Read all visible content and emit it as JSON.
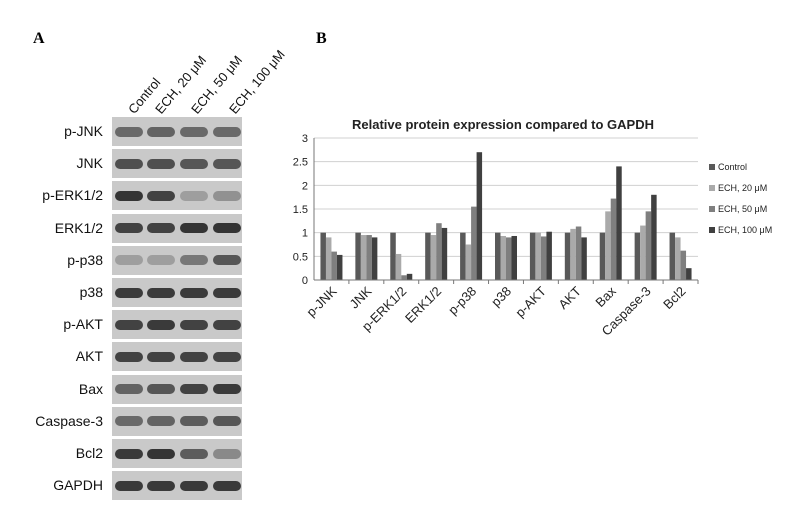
{
  "panel_a": {
    "letter": "A",
    "lanes": [
      "Control",
      "ECH, 20 μM",
      "ECH, 50 μM",
      "ECH, 100 μM"
    ],
    "blots": [
      {
        "label": "p-JNK",
        "intensity": [
          0.55,
          0.6,
          0.55,
          0.55
        ]
      },
      {
        "label": "JNK",
        "intensity": [
          0.75,
          0.75,
          0.7,
          0.7
        ]
      },
      {
        "label": "p-ERK1/2",
        "intensity": [
          0.95,
          0.85,
          0.15,
          0.25
        ]
      },
      {
        "label": "ERK1/2",
        "intensity": [
          0.85,
          0.85,
          0.95,
          0.95
        ]
      },
      {
        "label": "p-p38",
        "intensity": [
          0.15,
          0.15,
          0.45,
          0.7
        ]
      },
      {
        "label": "p38",
        "intensity": [
          0.9,
          0.9,
          0.9,
          0.9
        ]
      },
      {
        "label": "p-AKT",
        "intensity": [
          0.85,
          0.9,
          0.85,
          0.85
        ]
      },
      {
        "label": "AKT",
        "intensity": [
          0.85,
          0.85,
          0.85,
          0.85
        ]
      },
      {
        "label": "Bax",
        "intensity": [
          0.6,
          0.7,
          0.85,
          0.9
        ]
      },
      {
        "label": "Caspase-3",
        "intensity": [
          0.55,
          0.6,
          0.65,
          0.7
        ]
      },
      {
        "label": "Bcl2",
        "intensity": [
          0.9,
          0.95,
          0.65,
          0.3
        ]
      },
      {
        "label": "GAPDH",
        "intensity": [
          0.9,
          0.9,
          0.9,
          0.9
        ]
      }
    ]
  },
  "panel_b": {
    "letter": "B"
  },
  "chart_data": {
    "type": "bar",
    "title": "Relative protein expression compared to GAPDH",
    "xlabel": "",
    "ylabel": "",
    "ylim": [
      0,
      3
    ],
    "yticks": [
      "0",
      "0.5",
      "1",
      "1.5",
      "2",
      "2.5",
      "3"
    ],
    "grid": "horizontal",
    "legend": "right",
    "categories": [
      "p-JNK",
      "JNK",
      "p-ERK1/2",
      "ERK1/2",
      "p-p38",
      "p38",
      "p-AKT",
      "AKT",
      "Bax",
      "Caspase-3",
      "Bcl2"
    ],
    "series": [
      {
        "name": "Control",
        "color": "#595959",
        "values": [
          1,
          1,
          1,
          1,
          1,
          1,
          1,
          1,
          1,
          1,
          1
        ]
      },
      {
        "name": "ECH, 20 μM",
        "color": "#aaaaaa",
        "values": [
          0.9,
          0.95,
          0.55,
          0.95,
          0.75,
          0.93,
          1.0,
          1.08,
          1.45,
          1.15,
          0.9
        ]
      },
      {
        "name": "ECH, 50 μM",
        "color": "#7f7f7f",
        "values": [
          0.6,
          0.95,
          0.1,
          1.2,
          1.55,
          0.9,
          0.92,
          1.13,
          1.72,
          1.45,
          0.62
        ]
      },
      {
        "name": "ECH, 100 μM",
        "color": "#404040",
        "values": [
          0.53,
          0.9,
          0.13,
          1.1,
          2.7,
          0.93,
          1.02,
          0.9,
          2.4,
          1.8,
          0.25
        ]
      }
    ]
  }
}
